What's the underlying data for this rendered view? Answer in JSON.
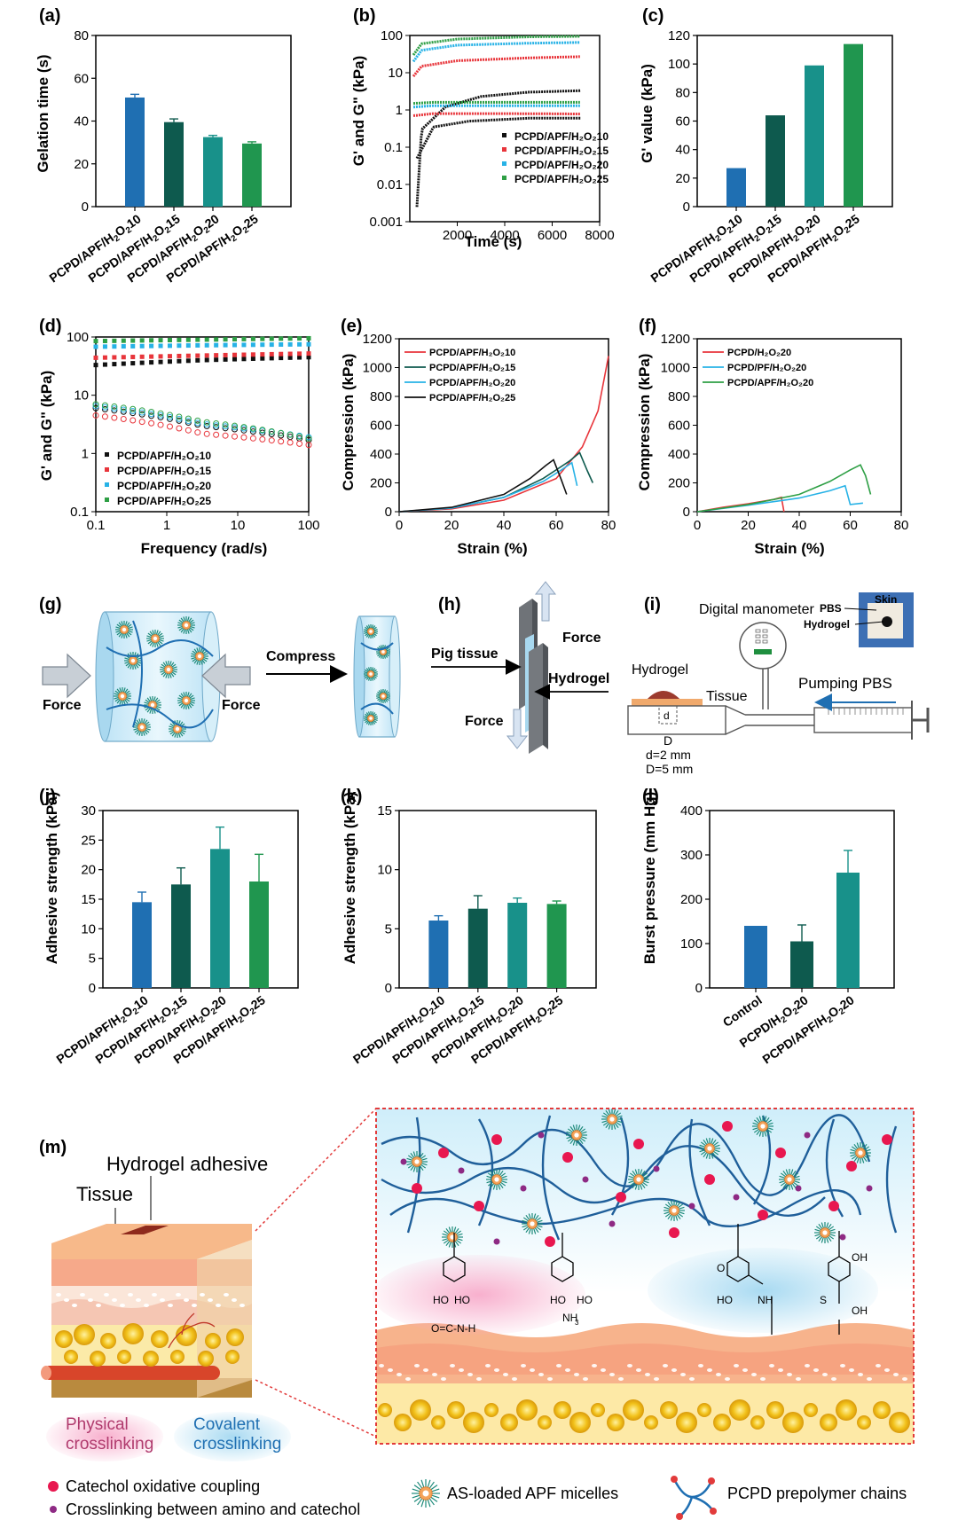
{
  "colors": {
    "c10": "#1f6fb2",
    "c15": "#0e5a4e",
    "c20": "#18918a",
    "c25": "#20964f",
    "red": "#e8353b",
    "cyan": "#27b2e6",
    "green": "#2e9f45",
    "black": "#111111"
  },
  "panels": {
    "a": {
      "label": "(a)",
      "ylabel": "Gelation time (s)",
      "yticks": [
        "0",
        "20",
        "40",
        "60",
        "80"
      ],
      "xcats": [
        "PCPD/APF/H2O210",
        "PCPD/APF/H2O215",
        "PCPD/APF/H2O220",
        "PCPD/APF/H2O225"
      ]
    },
    "b": {
      "label": "(b)",
      "ylabel": "G' and G\" (kPa)",
      "xlabel": "Time (s)",
      "yticks": [
        "0.001",
        "0.01",
        "0.1",
        "1",
        "10",
        "100"
      ],
      "xticks": [
        "2000",
        "4000",
        "6000",
        "8000"
      ],
      "legend": [
        "PCPD/APF/H₂O₂10",
        "PCPD/APF/H₂O₂15",
        "PCPD/APF/H₂O₂20",
        "PCPD/APF/H₂O₂25"
      ]
    },
    "c": {
      "label": "(c)",
      "ylabel": "G' value (kPa)",
      "yticks": [
        "0",
        "20",
        "40",
        "60",
        "80",
        "100",
        "120"
      ],
      "xcats": [
        "PCPD/APF/H2O210",
        "PCPD/APF/H2O215",
        "PCPD/APF/H2O220",
        "PCPD/APF/H2O225"
      ]
    },
    "d": {
      "label": "(d)",
      "ylabel": "G' and G\" (kPa)",
      "xlabel": "Frequency (rad/s)",
      "yticks": [
        "0.1",
        "1",
        "10",
        "100"
      ],
      "xticks": [
        "0.1",
        "1",
        "10",
        "100"
      ],
      "legend": [
        "PCPD/APF/H₂O₂10",
        "PCPD/APF/H₂O₂15",
        "PCPD/APF/H₂O₂20",
        "PCPD/APF/H₂O₂25"
      ]
    },
    "e": {
      "label": "(e)",
      "ylabel": "Compression (kPa)",
      "xlabel": "Strain (%)",
      "yticks": [
        "0",
        "200",
        "400",
        "600",
        "800",
        "1000",
        "1200"
      ],
      "xticks": [
        "0",
        "20",
        "40",
        "60",
        "80"
      ],
      "legend": [
        "PCPD/APF/H₂O₂10",
        "PCPD/APF/H₂O₂15",
        "PCPD/APF/H₂O₂20",
        "PCPD/APF/H₂O₂25"
      ]
    },
    "f": {
      "label": "(f)",
      "ylabel": "Compression (kPa)",
      "xlabel": "Strain (%)",
      "yticks": [
        "0",
        "200",
        "400",
        "600",
        "800",
        "1000",
        "1200"
      ],
      "xticks": [
        "0",
        "20",
        "40",
        "60",
        "80"
      ],
      "legend": [
        "PCPD/H₂O₂20",
        "PCPD/PF/H₂O₂20",
        "PCPD/APF/H₂O₂20"
      ]
    },
    "g": {
      "label": "(g)",
      "force_left": "Force",
      "force_right": "Force",
      "compress": "Compress"
    },
    "h": {
      "label": "(h)",
      "pig": "Pig tissue",
      "hydrogel": "Hydrogel",
      "force_top": "Force",
      "force_bottom": "Force"
    },
    "i": {
      "label": "(i)",
      "manometer": "Digital manometer",
      "skin": "Skin",
      "pbs": "PBS",
      "hydrogel_photo": "Hydrogel",
      "hydrogel": "Hydrogel",
      "tissue": "Tissue",
      "pumping": "Pumping PBS",
      "d_small": "d",
      "d_big": "D",
      "d_text": "d=2 mm",
      "D_text": "D=5 mm"
    },
    "j": {
      "label": "(j)",
      "ylabel": "Adhesive strength (kPa)",
      "yticks": [
        "0",
        "5",
        "10",
        "15",
        "20",
        "25",
        "30"
      ],
      "xcats": [
        "PCPD/APF/H2O210",
        "PCPD/APF/H2O215",
        "PCPD/APF/H2O220",
        "PCPD/APF/H2O225"
      ]
    },
    "k": {
      "label": "(k)",
      "ylabel": "Adhesive strength (kPa)",
      "yticks": [
        "0",
        "5",
        "10",
        "15"
      ],
      "xcats": [
        "PCPD/APF/H2O210",
        "PCPD/APF/H2O215",
        "PCPD/APF/H2O220",
        "PCPD/APF/H2O225"
      ]
    },
    "l": {
      "label": "(l)",
      "ylabel": "Burst pressure (mm Hg)",
      "yticks": [
        "0",
        "100",
        "200",
        "300",
        "400"
      ],
      "xcats": [
        "Control",
        "PCPD/H2O220",
        "PCPD/APF/H2O220"
      ]
    },
    "m": {
      "label": "(m)",
      "hydrogel_adhesive": "Hydrogel adhesive",
      "tissue": "Tissue",
      "physical": "Physical\ncrosslinking",
      "covalent": "Covalent\ncrosslinking",
      "legend_red": "Catechol oxidative coupling",
      "legend_purple": "Crosslinking between amino and catechol",
      "legend_micelle": "AS-loaded APF micelles",
      "legend_chain": "PCPD prepolymer chains",
      "chem": [
        "HO",
        "HO",
        "O=C-N-H",
        "HO",
        "HO",
        "NH",
        "3",
        "O",
        "HO",
        "NH",
        "S",
        "OH",
        "OH"
      ]
    }
  },
  "chart_data": [
    {
      "id": "a",
      "type": "bar",
      "categories": [
        "PCPD/APF/H2O210",
        "PCPD/APF/H2O215",
        "PCPD/APF/H2O220",
        "PCPD/APF/H2O225"
      ],
      "values": [
        51,
        39.5,
        32.5,
        29.5
      ],
      "errors": [
        1.5,
        1.5,
        0.8,
        0.8
      ],
      "ylim": [
        0,
        80
      ],
      "ylabel": "Gelation time (s)"
    },
    {
      "id": "b",
      "type": "scatter",
      "xlabel": "Time (s)",
      "ylabel": "G' and G\" (kPa)",
      "xlim": [
        0,
        8000
      ],
      "ylim": [
        0.001,
        100
      ],
      "yscale": "log",
      "series": [
        {
          "name": "PCPD/APF/H₂O₂10",
          "Gp": [
            [
              300,
              0.0025
            ],
            [
              500,
              0.3
            ],
            [
              1500,
              1.2
            ],
            [
              3000,
              2.3
            ],
            [
              5000,
              3.0
            ],
            [
              7200,
              3.3
            ]
          ],
          "Gpp": [
            [
              300,
              0.05
            ],
            [
              1000,
              0.35
            ],
            [
              2500,
              0.5
            ],
            [
              5000,
              0.6
            ],
            [
              7200,
              0.6
            ]
          ]
        },
        {
          "name": "PCPD/APF/H₂O₂15",
          "Gp": [
            [
              150,
              8
            ],
            [
              500,
              15
            ],
            [
              2000,
              21
            ],
            [
              5000,
              25
            ],
            [
              7200,
              27
            ]
          ],
          "Gpp": [
            [
              150,
              0.7
            ],
            [
              1000,
              0.8
            ],
            [
              4000,
              0.8
            ],
            [
              7200,
              0.78
            ]
          ]
        },
        {
          "name": "PCPD/APF/H₂O₂20",
          "Gp": [
            [
              150,
              20
            ],
            [
              500,
              40
            ],
            [
              2000,
              55
            ],
            [
              5000,
              62
            ],
            [
              7200,
              65
            ]
          ],
          "Gpp": [
            [
              150,
              1.2
            ],
            [
              1000,
              1.3
            ],
            [
              4000,
              1.3
            ],
            [
              7200,
              1.3
            ]
          ]
        },
        {
          "name": "PCPD/APF/H₂O₂25",
          "Gp": [
            [
              150,
              30
            ],
            [
              500,
              60
            ],
            [
              2000,
              80
            ],
            [
              5000,
              92
            ],
            [
              7200,
              95
            ]
          ],
          "Gpp": [
            [
              150,
              1.5
            ],
            [
              1000,
              1.6
            ],
            [
              4000,
              1.6
            ],
            [
              7200,
              1.6
            ]
          ]
        }
      ]
    },
    {
      "id": "c",
      "type": "bar",
      "categories": [
        "PCPD/APF/H2O210",
        "PCPD/APF/H2O215",
        "PCPD/APF/H2O220",
        "PCPD/APF/H2O225"
      ],
      "values": [
        27,
        64,
        99,
        114
      ],
      "ylim": [
        0,
        120
      ],
      "ylabel": "G' value (kPa)"
    },
    {
      "id": "d",
      "type": "scatter",
      "xlabel": "Frequency (rad/s)",
      "ylabel": "G' and G\" (kPa)",
      "xscale": "log",
      "yscale": "log",
      "xlim": [
        0.1,
        100
      ],
      "ylim": [
        0.1,
        100
      ],
      "series": [
        {
          "name": "PCPD/APF/H₂O₂10",
          "Gp": [
            33,
            40,
            45
          ],
          "Gpp": [
            6,
            3,
            1.7
          ]
        },
        {
          "name": "PCPD/APF/H₂O₂15",
          "Gp": [
            44,
            48,
            52
          ],
          "Gpp": [
            4.5,
            2.2,
            1.4
          ]
        },
        {
          "name": "PCPD/APF/H₂O₂20",
          "Gp": [
            68,
            72,
            75
          ],
          "Gpp": [
            6.5,
            3.2,
            1.9
          ]
        },
        {
          "name": "PCPD/APF/H₂O₂25",
          "Gp": [
            85,
            90,
            95
          ],
          "Gpp": [
            7,
            3.5,
            1.8
          ]
        }
      ]
    },
    {
      "id": "e",
      "type": "line",
      "xlabel": "Strain (%)",
      "ylabel": "Compression (kPa)",
      "xlim": [
        0,
        80
      ],
      "ylim": [
        0,
        1200
      ],
      "series": [
        {
          "name": "PCPD/APF/H₂O₂10",
          "points": [
            [
              0,
              0
            ],
            [
              20,
              20
            ],
            [
              40,
              80
            ],
            [
              60,
              230
            ],
            [
              70,
              450
            ],
            [
              76,
              700
            ],
            [
              80,
              1080
            ]
          ]
        },
        {
          "name": "PCPD/APF/H₂O₂15",
          "points": [
            [
              0,
              0
            ],
            [
              20,
              25
            ],
            [
              40,
              100
            ],
            [
              55,
              230
            ],
            [
              65,
              350
            ],
            [
              69,
              410
            ],
            [
              72,
              280
            ],
            [
              74,
              200
            ]
          ]
        },
        {
          "name": "PCPD/APF/H₂O₂20",
          "points": [
            [
              0,
              0
            ],
            [
              20,
              25
            ],
            [
              40,
              100
            ],
            [
              55,
              210
            ],
            [
              62,
              290
            ],
            [
              66,
              340
            ],
            [
              68,
              180
            ]
          ]
        },
        {
          "name": "PCPD/APF/H₂O₂25",
          "points": [
            [
              0,
              0
            ],
            [
              20,
              30
            ],
            [
              40,
              120
            ],
            [
              50,
              230
            ],
            [
              56,
              320
            ],
            [
              59,
              360
            ],
            [
              62,
              220
            ],
            [
              64,
              120
            ]
          ]
        }
      ]
    },
    {
      "id": "f",
      "type": "line",
      "xlabel": "Strain (%)",
      "ylabel": "Compression (kPa)",
      "xlim": [
        0,
        80
      ],
      "ylim": [
        0,
        1200
      ],
      "series": [
        {
          "name": "PCPD/H₂O₂20",
          "points": [
            [
              0,
              0
            ],
            [
              10,
              30
            ],
            [
              20,
              55
            ],
            [
              30,
              85
            ],
            [
              33,
              100
            ],
            [
              34,
              0
            ]
          ]
        },
        {
          "name": "PCPD/PF/H₂O₂20",
          "points": [
            [
              0,
              0
            ],
            [
              20,
              45
            ],
            [
              40,
              95
            ],
            [
              52,
              145
            ],
            [
              58,
              180
            ],
            [
              60,
              50
            ],
            [
              65,
              60
            ]
          ]
        },
        {
          "name": "PCPD/APF/H₂O₂20",
          "points": [
            [
              0,
              0
            ],
            [
              20,
              50
            ],
            [
              40,
              120
            ],
            [
              52,
              210
            ],
            [
              60,
              290
            ],
            [
              64,
              325
            ],
            [
              66,
              250
            ],
            [
              68,
              120
            ]
          ]
        }
      ]
    },
    {
      "id": "j",
      "type": "bar",
      "categories": [
        "PCPD/APF/H2O210",
        "PCPD/APF/H2O215",
        "PCPD/APF/H2O220",
        "PCPD/APF/H2O225"
      ],
      "values": [
        14.5,
        17.5,
        23.5,
        18
      ],
      "errors": [
        1.7,
        2.8,
        3.7,
        4.6
      ],
      "ylim": [
        0,
        30
      ],
      "ylabel": "Adhesive strength (kPa)"
    },
    {
      "id": "k",
      "type": "bar",
      "categories": [
        "PCPD/APF/H2O210",
        "PCPD/APF/H2O215",
        "PCPD/APF/H2O220",
        "PCPD/APF/H2O225"
      ],
      "values": [
        5.7,
        6.7,
        7.2,
        7.1
      ],
      "errors": [
        0.4,
        1.1,
        0.4,
        0.25
      ],
      "ylim": [
        0,
        15
      ],
      "ylabel": "Adhesive strength (kPa)"
    },
    {
      "id": "l",
      "type": "bar",
      "categories": [
        "Control",
        "PCPD/H2O220",
        "PCPD/APF/H2O220"
      ],
      "values": [
        140,
        105,
        260
      ],
      "errors": [
        0,
        37,
        50
      ],
      "ylim": [
        0,
        400
      ],
      "ylabel": "Burst pressure (mm Hg)"
    }
  ]
}
